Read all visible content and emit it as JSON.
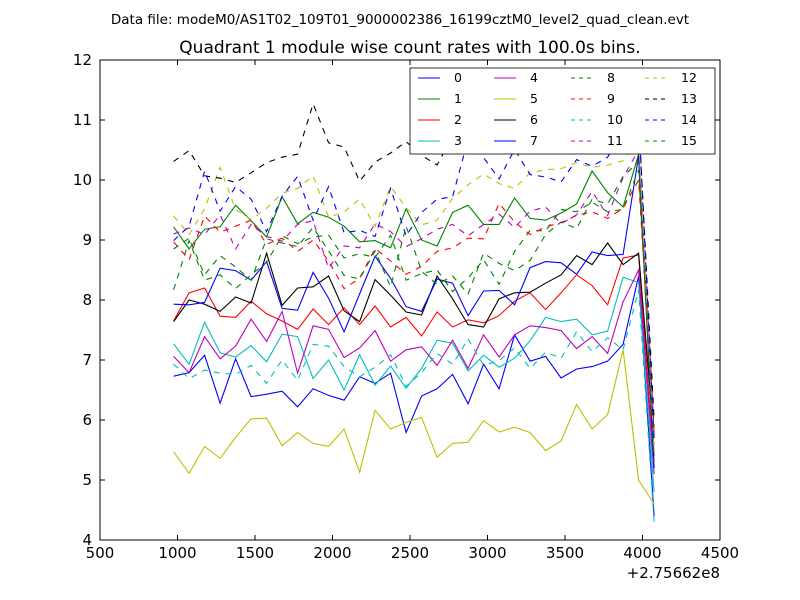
{
  "chart_data": {
    "type": "line",
    "suptitle": "Data file: modeM0/AS1T02_109T01_9000002386_16199cztM0_level2_quad_clean.evt",
    "title": "Quadrant 1 module wise count rates with 100.0s bins.",
    "xlabel": "",
    "ylabel": "",
    "offset_text": "+2.75662e8",
    "xlim": [
      500,
      4500
    ],
    "ylim": [
      4,
      12
    ],
    "xticks": [
      500,
      1000,
      1500,
      2000,
      2500,
      3000,
      3500,
      4000,
      4500
    ],
    "yticks": [
      4,
      5,
      6,
      7,
      8,
      9,
      10,
      11,
      12
    ],
    "xtick_labels": [
      "500",
      "1000",
      "1500",
      "2000",
      "2500",
      "3000",
      "3500",
      "4000",
      "4500"
    ],
    "ytick_labels": [
      "4",
      "5",
      "6",
      "7",
      "8",
      "9",
      "10",
      "11",
      "12"
    ],
    "grid": false,
    "legend_location": "top-right",
    "x": [
      975,
      1075,
      1175,
      1275,
      1375,
      1475,
      1575,
      1675,
      1775,
      1875,
      1975,
      2075,
      2175,
      2275,
      2375,
      2475,
      2575,
      2675,
      2775,
      2875,
      2975,
      3075,
      3175,
      3275,
      3375,
      3475,
      3575,
      3675,
      3775,
      3875,
      3975,
      4075
    ],
    "series": [
      {
        "name": "0",
        "color": "#0000ff",
        "dash": "solid",
        "values": [
          6.73,
          6.79,
          7.08,
          6.28,
          7.02,
          6.39,
          6.43,
          6.48,
          6.22,
          6.52,
          6.41,
          6.33,
          6.72,
          6.61,
          6.78,
          5.79,
          6.4,
          6.52,
          6.76,
          6.27,
          6.93,
          6.52,
          7.42,
          6.98,
          7.06,
          6.7,
          6.85,
          6.89,
          6.98,
          7.26,
          8.4,
          4.4
        ]
      },
      {
        "name": "1",
        "color": "#008000",
        "dash": "solid",
        "values": [
          9.22,
          8.85,
          9.18,
          9.22,
          9.58,
          9.32,
          9.05,
          9.72,
          9.27,
          9.46,
          9.38,
          9.23,
          8.97,
          8.99,
          8.87,
          9.52,
          9.0,
          8.9,
          9.46,
          9.58,
          9.26,
          9.26,
          9.7,
          9.36,
          9.33,
          9.45,
          9.6,
          10.15,
          9.79,
          9.55,
          10.43,
          5.4
        ]
      },
      {
        "name": "2",
        "color": "#ff0000",
        "dash": "solid",
        "values": [
          7.65,
          8.12,
          8.2,
          7.73,
          7.71,
          7.98,
          7.77,
          7.65,
          7.51,
          7.85,
          7.59,
          7.87,
          7.59,
          7.9,
          7.55,
          7.71,
          7.4,
          7.8,
          7.55,
          7.67,
          7.62,
          7.74,
          7.98,
          8.12,
          7.84,
          8.12,
          8.42,
          8.24,
          7.92,
          8.7,
          8.75,
          5.3
        ]
      },
      {
        "name": "3",
        "color": "#00bfbf",
        "dash": "solid",
        "values": [
          7.27,
          6.93,
          7.63,
          7.12,
          7.05,
          7.24,
          6.97,
          7.43,
          7.39,
          6.69,
          7.0,
          6.5,
          7.09,
          6.58,
          6.9,
          6.53,
          6.86,
          7.33,
          7.28,
          6.82,
          7.08,
          6.88,
          7.03,
          7.32,
          7.71,
          7.64,
          7.68,
          7.42,
          7.48,
          8.38,
          8.29,
          4.8
        ]
      },
      {
        "name": "4",
        "color": "#bf00bf",
        "dash": "solid",
        "values": [
          7.06,
          6.79,
          7.39,
          7.02,
          7.23,
          7.68,
          7.31,
          7.81,
          6.78,
          7.57,
          7.51,
          7.04,
          7.2,
          7.49,
          6.98,
          7.17,
          7.22,
          6.91,
          7.33,
          6.86,
          7.42,
          7.05,
          7.42,
          7.57,
          7.54,
          7.49,
          7.19,
          7.39,
          7.11,
          7.97,
          8.5,
          5.1
        ]
      },
      {
        "name": "5",
        "color": "#bfbf00",
        "dash": "solid",
        "values": [
          5.47,
          5.11,
          5.56,
          5.36,
          5.71,
          6.02,
          6.03,
          5.57,
          5.79,
          5.61,
          5.56,
          5.85,
          5.13,
          6.16,
          5.85,
          5.96,
          6.04,
          5.38,
          5.61,
          5.63,
          5.99,
          5.8,
          5.88,
          5.79,
          5.49,
          5.65,
          6.26,
          5.85,
          6.09,
          7.17,
          5.0,
          4.6
        ]
      },
      {
        "name": "6",
        "color": "#000000",
        "dash": "solid",
        "values": [
          7.64,
          8.0,
          7.93,
          7.81,
          8.05,
          7.95,
          8.78,
          7.91,
          8.2,
          8.22,
          8.4,
          7.82,
          7.64,
          8.34,
          8.08,
          7.8,
          7.75,
          8.4,
          8.02,
          7.59,
          7.55,
          8.02,
          8.12,
          8.13,
          8.28,
          8.42,
          8.74,
          8.59,
          8.95,
          8.59,
          8.78,
          5.7
        ]
      },
      {
        "name": "7",
        "color": "#0000ff",
        "dash": "solid",
        "values": [
          7.93,
          7.92,
          7.96,
          8.53,
          8.49,
          8.33,
          8.64,
          7.86,
          7.83,
          8.46,
          8.03,
          7.47,
          8.1,
          8.73,
          8.36,
          7.89,
          7.81,
          8.35,
          8.28,
          7.74,
          8.15,
          8.16,
          7.92,
          8.54,
          8.64,
          8.62,
          8.43,
          8.8,
          8.74,
          8.76,
          10.4,
          5.2
        ]
      },
      {
        "name": "8",
        "color": "#008000",
        "dash": "dash",
        "values": [
          8.17,
          8.99,
          8.33,
          8.42,
          8.19,
          8.42,
          8.63,
          9.07,
          8.94,
          9.05,
          9.08,
          8.7,
          8.77,
          8.71,
          9.08,
          8.33,
          8.44,
          8.5,
          8.14,
          8.37,
          8.67,
          8.26,
          8.81,
          9.16,
          9.15,
          9.51,
          9.47,
          9.63,
          9.47,
          9.51,
          10.17,
          5.6
        ]
      },
      {
        "name": "9",
        "color": "#ff0000",
        "dash": "dash",
        "values": [
          8.97,
          8.67,
          9.4,
          9.13,
          9.23,
          9.33,
          8.93,
          9.03,
          8.81,
          9.0,
          8.65,
          8.19,
          8.36,
          8.86,
          8.65,
          8.43,
          8.56,
          8.81,
          8.87,
          9.03,
          9.02,
          9.61,
          9.3,
          9.09,
          9.22,
          9.29,
          9.41,
          9.47,
          9.36,
          9.53,
          10.0,
          5.8
        ]
      },
      {
        "name": "10",
        "color": "#00bfbf",
        "dash": "dash",
        "values": [
          6.93,
          6.69,
          6.83,
          6.78,
          6.76,
          6.91,
          6.61,
          7.0,
          6.66,
          7.26,
          7.23,
          6.89,
          6.72,
          6.88,
          7.09,
          6.56,
          6.79,
          7.11,
          6.93,
          7.35,
          6.91,
          6.99,
          7.2,
          6.86,
          7.13,
          7.03,
          7.47,
          7.14,
          7.37,
          7.17,
          8.17,
          4.3
        ]
      },
      {
        "name": "11",
        "color": "#bf00bf",
        "dash": "dash",
        "values": [
          9.1,
          9.2,
          9.09,
          9.42,
          8.85,
          9.26,
          9.06,
          8.98,
          9.26,
          9.32,
          8.53,
          8.9,
          8.87,
          9.27,
          9.14,
          8.89,
          9.02,
          9.18,
          9.26,
          9.07,
          9.26,
          9.43,
          9.21,
          9.48,
          9.55,
          9.27,
          9.42,
          9.81,
          9.41,
          10.04,
          10.5,
          5.9
        ]
      },
      {
        "name": "12",
        "color": "#bfbf00",
        "dash": "dash",
        "values": [
          9.4,
          9.09,
          9.52,
          10.21,
          9.51,
          9.34,
          9.53,
          9.78,
          9.86,
          10.07,
          9.38,
          9.47,
          9.68,
          9.23,
          9.89,
          9.54,
          9.25,
          9.33,
          9.69,
          9.92,
          10.1,
          9.94,
          9.86,
          10.12,
          10.17,
          10.19,
          10.29,
          10.21,
          10.25,
          10.32,
          10.71,
          5.5
        ]
      },
      {
        "name": "13",
        "color": "#000000",
        "dash": "dash",
        "values": [
          10.31,
          10.49,
          10.07,
          10.03,
          9.96,
          10.12,
          10.29,
          10.38,
          10.43,
          11.27,
          10.62,
          10.55,
          9.98,
          10.3,
          10.45,
          10.64,
          10.41,
          10.25,
          10.73,
          10.6,
          10.53,
          10.74,
          10.61,
          10.8,
          10.53,
          10.61,
          10.49,
          10.62,
          10.8,
          10.45,
          11.06,
          6.0
        ]
      },
      {
        "name": "14",
        "color": "#0000ff",
        "dash": "dash",
        "values": [
          8.99,
          9.23,
          10.15,
          9.48,
          9.89,
          9.68,
          9.14,
          9.73,
          10.06,
          9.33,
          9.89,
          9.12,
          9.16,
          9.06,
          9.86,
          9.07,
          9.46,
          9.68,
          9.72,
          10.68,
          10.37,
          10.02,
          10.51,
          10.09,
          10.05,
          9.97,
          10.34,
          10.23,
          10.38,
          10.83,
          11.1,
          5.7
        ]
      },
      {
        "name": "15",
        "color": "#008000",
        "dash": "dash",
        "values": [
          8.85,
          9.03,
          8.42,
          8.74,
          8.55,
          8.33,
          9.02,
          8.95,
          8.89,
          9.21,
          8.82,
          8.41,
          8.35,
          8.82,
          8.22,
          9.23,
          8.48,
          8.26,
          8.4,
          8.1,
          8.78,
          8.61,
          8.49,
          8.66,
          9.09,
          9.3,
          9.19,
          9.68,
          9.6,
          10.06,
          10.3,
          5.3
        ]
      }
    ]
  }
}
